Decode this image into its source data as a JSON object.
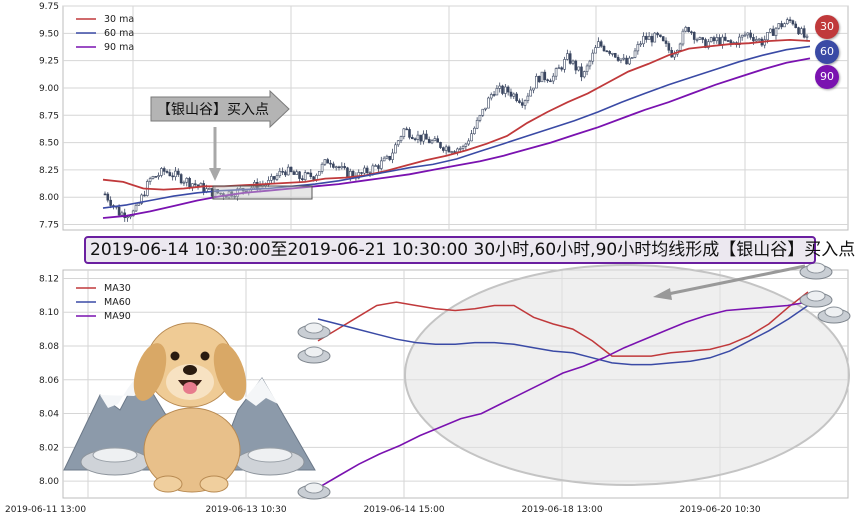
{
  "banner": {
    "text": "2019-06-14 10:30:00至2019-06-21 10:30:00 30小时,60小时,90小时均线形成【银山谷】买入点"
  },
  "callout": {
    "text": "【银山谷】买入点"
  },
  "ma_badges": [
    "30",
    "60",
    "90"
  ],
  "colors": {
    "ma30": "#c0393b",
    "ma60": "#3a4aa5",
    "ma90": "#7a12b0",
    "candle": "#3a4660",
    "badge30": "#c0393b",
    "badge60": "#3a4aa5",
    "badge90": "#7a12b0"
  },
  "chart_data": [
    {
      "type": "candlestick",
      "title": "",
      "ylim": [
        7.7,
        9.75
      ],
      "y_ticks": [
        "7.75",
        "8.00",
        "8.25",
        "8.50",
        "8.75",
        "9.00",
        "9.25",
        "9.50",
        "9.75"
      ],
      "grid": true,
      "legend": {
        "position": "top-left",
        "entries": [
          "30 ma",
          "60 ma",
          "90 ma"
        ]
      },
      "series": [
        {
          "name": "30 ma",
          "values": [
            8.16,
            8.14,
            8.08,
            8.07,
            8.08,
            8.1,
            8.1,
            8.11,
            8.12,
            8.13,
            8.14,
            8.17,
            8.18,
            8.2,
            8.24,
            8.29,
            8.34,
            8.38,
            8.43,
            8.49,
            8.56,
            8.68,
            8.78,
            8.87,
            8.95,
            9.05,
            9.15,
            9.22,
            9.3,
            9.36,
            9.38,
            9.4,
            9.41,
            9.43,
            9.44,
            9.43
          ]
        },
        {
          "name": "60 ma",
          "values": [
            7.9,
            7.93,
            7.97,
            8.01,
            8.04,
            8.06,
            8.07,
            8.08,
            8.1,
            8.12,
            8.15,
            8.19,
            8.23,
            8.27,
            8.3,
            8.35,
            8.42,
            8.49,
            8.56,
            8.63,
            8.7,
            8.78,
            8.87,
            8.95,
            9.03,
            9.1,
            9.17,
            9.24,
            9.3,
            9.35,
            9.38
          ]
        },
        {
          "name": "90 ma",
          "values": [
            7.81,
            7.83,
            7.87,
            7.92,
            7.97,
            8.01,
            8.04,
            8.06,
            8.08,
            8.1,
            8.12,
            8.15,
            8.18,
            8.21,
            8.25,
            8.29,
            8.33,
            8.38,
            8.44,
            8.5,
            8.57,
            8.64,
            8.72,
            8.8,
            8.87,
            8.95,
            9.03,
            9.1,
            9.17,
            9.23,
            9.27
          ]
        }
      ],
      "price_path": [
        8.03,
        7.85,
        7.86,
        8.16,
        8.24,
        8.18,
        8.12,
        8.05,
        8.03,
        8.06,
        8.1,
        8.13,
        8.25,
        8.18,
        8.2,
        8.35,
        8.23,
        8.2,
        8.27,
        8.35,
        8.62,
        8.55,
        8.5,
        8.45,
        8.45,
        8.7,
        8.98,
        8.97,
        8.88,
        9.1,
        9.1,
        9.28,
        9.1,
        9.4,
        9.33,
        9.21,
        9.45,
        9.46,
        9.31,
        9.56,
        9.4,
        9.44,
        9.4,
        9.5,
        9.42,
        9.56,
        9.62,
        9.43
      ]
    },
    {
      "type": "line",
      "title": "",
      "x_tick_labels": [
        "2019-06-11 13:00",
        "2019-06-13 10:30",
        "2019-06-14 15:00",
        "2019-06-18 13:00",
        "2019-06-20 10:30"
      ],
      "y_ticks": [
        "8.00",
        "8.02",
        "8.04",
        "8.06",
        "8.08",
        "8.10",
        "8.12"
      ],
      "ylim": [
        7.99,
        8.125
      ],
      "grid": true,
      "legend": {
        "position": "top-left",
        "entries": [
          "MA30",
          "MA60",
          "MA90"
        ]
      },
      "series": [
        {
          "name": "MA30",
          "values": [
            8.083,
            8.09,
            8.097,
            8.104,
            8.106,
            8.104,
            8.102,
            8.101,
            8.102,
            8.104,
            8.104,
            8.097,
            8.093,
            8.09,
            8.083,
            8.074,
            8.074,
            8.074,
            8.076,
            8.077,
            8.078,
            8.081,
            8.086,
            8.093,
            8.103,
            8.112
          ]
        },
        {
          "name": "MA60",
          "values": [
            8.096,
            8.093,
            8.09,
            8.087,
            8.084,
            8.082,
            8.081,
            8.081,
            8.082,
            8.082,
            8.081,
            8.079,
            8.077,
            8.076,
            8.073,
            8.07,
            8.069,
            8.069,
            8.07,
            8.071,
            8.073,
            8.077,
            8.083,
            8.089,
            8.096,
            8.104
          ]
        },
        {
          "name": "MA90",
          "values": [
            7.996,
            8.003,
            8.01,
            8.016,
            8.021,
            8.027,
            8.032,
            8.037,
            8.04,
            8.046,
            8.052,
            8.058,
            8.064,
            8.068,
            8.073,
            8.079,
            8.084,
            8.089,
            8.094,
            8.098,
            8.101,
            8.102,
            8.103,
            8.104,
            8.106
          ]
        }
      ]
    }
  ]
}
